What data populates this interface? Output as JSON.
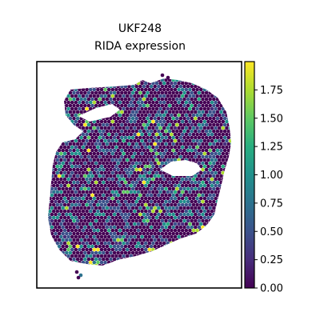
{
  "chart_data": {
    "type": "scatter",
    "plot_kind": "spatial transcriptomics spot map (hexagonal spot grid)",
    "title_lines": [
      "UKF248",
      "RIDA expression"
    ],
    "xlabel": "",
    "ylabel": "",
    "axis_ticks_shown": false,
    "grid": false,
    "legend": "none",
    "colormap": "viridis",
    "color_range": [
      0.0,
      2.0
    ],
    "colorbar": {
      "position": "right",
      "ticks": [
        0.0,
        0.25,
        0.5,
        0.75,
        1.0,
        1.25,
        1.5,
        1.75
      ],
      "tick_labels": [
        "0.00",
        "0.25",
        "0.50",
        "0.75",
        "1.00",
        "1.25",
        "1.50",
        "1.75"
      ]
    },
    "value_distribution": {
      "dominant": "0.00 (dark purple)",
      "common": "0.5–1.0 (blue / teal)",
      "sparse": "1.25–2.0 (green / yellow)"
    },
    "colors": {
      "low": "#440154",
      "mid": "#21918c",
      "high": "#fde725"
    }
  }
}
